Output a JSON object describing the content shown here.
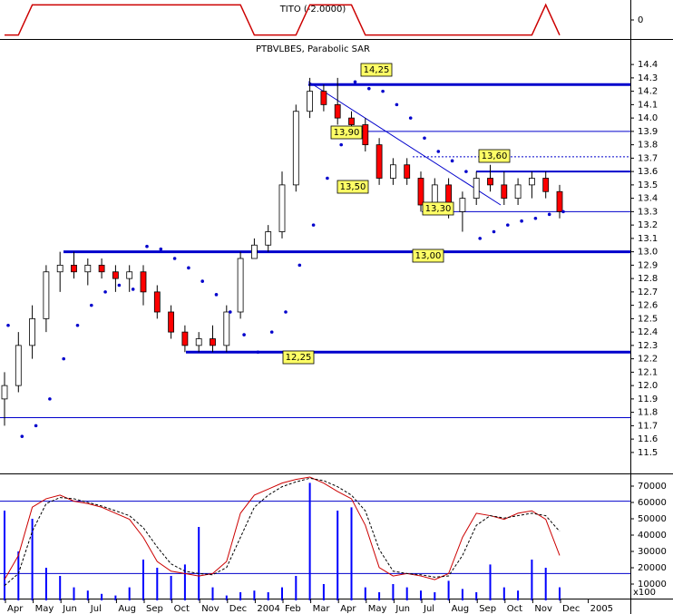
{
  "chart_data": [
    {
      "type": "line",
      "title": "TITO (-2.0000)",
      "color": "#cc0000",
      "values": [
        -1,
        -1,
        1,
        1,
        1,
        1,
        1,
        1,
        1,
        1,
        1,
        1,
        1,
        1,
        1,
        1,
        1,
        1,
        -1,
        -1,
        -1,
        -1,
        1,
        1,
        1,
        1,
        -1,
        -1,
        -1,
        -1,
        -1,
        -1,
        -1,
        -1,
        -1,
        -1,
        -1,
        -1,
        -1,
        1,
        -1,
        null,
        null,
        null
      ],
      "ylim": [
        -1.2,
        1.2
      ],
      "yticks": [
        0
      ]
    },
    {
      "type": "candlestick",
      "title": "PTBVLBES, Parabolic SAR",
      "up_color": "#ffffff",
      "down_color": "#ff0000",
      "sar_color": "#0000cc",
      "open": [
        11.9,
        12.0,
        12.3,
        12.5,
        12.85,
        12.9,
        12.85,
        12.9,
        12.85,
        12.8,
        12.85,
        12.7,
        12.55,
        12.4,
        12.3,
        12.35,
        12.3,
        12.55,
        12.95,
        13.05,
        13.15,
        13.5,
        14.05,
        14.2,
        14.1,
        14.0,
        13.95,
        13.8,
        13.55,
        13.65,
        13.55,
        13.35,
        13.5,
        13.3,
        13.4,
        13.55,
        13.5,
        13.4,
        13.5,
        13.55,
        13.45,
        null,
        null,
        null
      ],
      "high": [
        12.1,
        12.4,
        12.6,
        12.9,
        13.0,
        13.0,
        12.95,
        12.95,
        12.9,
        12.9,
        12.9,
        12.75,
        12.6,
        12.45,
        12.4,
        12.45,
        12.6,
        13.0,
        13.1,
        13.2,
        13.6,
        14.1,
        14.3,
        14.25,
        14.3,
        14.05,
        14.0,
        13.85,
        13.7,
        13.7,
        13.6,
        13.55,
        13.55,
        13.45,
        13.6,
        13.65,
        13.6,
        13.55,
        13.6,
        13.6,
        13.5,
        null,
        null,
        null
      ],
      "low": [
        11.7,
        11.95,
        12.2,
        12.4,
        12.7,
        12.8,
        12.75,
        12.8,
        12.7,
        12.7,
        12.6,
        12.5,
        12.35,
        12.25,
        12.25,
        12.25,
        12.25,
        12.5,
        12.95,
        13.0,
        13.1,
        13.45,
        14.0,
        14.05,
        13.95,
        13.9,
        13.75,
        13.5,
        13.5,
        13.5,
        13.3,
        13.3,
        13.25,
        13.15,
        13.35,
        13.45,
        13.35,
        13.35,
        13.4,
        13.4,
        13.25,
        null,
        null,
        null
      ],
      "close": [
        12.0,
        12.3,
        12.5,
        12.85,
        12.9,
        12.85,
        12.9,
        12.85,
        12.8,
        12.85,
        12.7,
        12.55,
        12.4,
        12.3,
        12.35,
        12.3,
        12.55,
        12.95,
        13.05,
        13.15,
        13.5,
        14.05,
        14.2,
        14.1,
        14.0,
        13.95,
        13.8,
        13.55,
        13.65,
        13.55,
        13.35,
        13.5,
        13.3,
        13.4,
        13.55,
        13.5,
        13.4,
        13.5,
        13.55,
        13.45,
        13.3,
        null,
        null,
        null
      ],
      "sar": [
        12.45,
        11.62,
        11.7,
        11.9,
        12.2,
        12.45,
        12.6,
        12.7,
        12.75,
        12.72,
        13.04,
        13.02,
        12.95,
        12.88,
        12.78,
        12.68,
        12.55,
        12.38,
        12.25,
        12.4,
        12.55,
        12.9,
        13.2,
        13.55,
        13.8,
        14.27,
        14.22,
        14.2,
        14.1,
        14.0,
        13.85,
        13.75,
        13.68,
        13.6,
        13.1,
        13.15,
        13.2,
        13.23,
        13.25,
        13.28,
        13.3,
        null,
        null,
        null
      ],
      "ylim": [
        11.35,
        14.55
      ],
      "yticks": [
        11.5,
        11.6,
        11.7,
        11.8,
        11.9,
        {
          "value": 12,
          "label": "12.0"
        },
        12.1,
        12.2,
        12.3,
        12.4,
        12.5,
        12.6,
        12.7,
        12.8,
        12.9,
        {
          "value": 13,
          "label": "13.0"
        },
        13.1,
        13.2,
        13.3,
        13.4,
        13.5,
        13.6,
        13.7,
        13.8,
        13.9,
        {
          "value": 14,
          "label": "14.0"
        },
        14.1,
        14.2,
        14.3,
        14.4
      ],
      "levels": [
        {
          "value": 14.25,
          "style": "thick"
        },
        {
          "value": 13.9,
          "style": "solid"
        },
        {
          "value": 13.71,
          "style": "dotted"
        },
        {
          "value": 13.6,
          "style": "medium"
        },
        {
          "value": 13.3,
          "style": "solid"
        },
        {
          "value": 13.0,
          "style": "thick"
        },
        {
          "value": 12.25,
          "style": "thick"
        },
        {
          "value": 11.76,
          "style": "solid"
        }
      ],
      "annotations": [
        {
          "value": 14.25,
          "label": "14,25"
        },
        {
          "value": 13.9,
          "label": "13,90"
        },
        {
          "value": 13.6,
          "label": "13,60"
        },
        {
          "value": 13.5,
          "label": "13,50"
        },
        {
          "value": 13.3,
          "label": "13,30"
        },
        {
          "value": 13.0,
          "label": "13,00"
        },
        {
          "value": 12.25,
          "label": "12,25"
        }
      ]
    },
    {
      "type": "bar",
      "color": "#0000ff",
      "categories": [
        "Apr",
        null,
        "May",
        null,
        "Jun",
        null,
        "Jul",
        null,
        "Aug",
        null,
        "Sep",
        null,
        "Oct",
        null,
        "Nov",
        null,
        "Dec",
        null,
        "2004",
        null,
        "Feb",
        null,
        "Mar",
        null,
        "Apr",
        null,
        "May",
        null,
        "Jun",
        null,
        "Jul",
        null,
        "Aug",
        null,
        "Sep",
        null,
        "Oct",
        null,
        "Nov",
        null,
        "Dec",
        null,
        "2005",
        null
      ],
      "values": [
        55000,
        30000,
        50000,
        20000,
        15000,
        8000,
        6000,
        4000,
        3000,
        8000,
        25000,
        20000,
        15000,
        22000,
        45000,
        8000,
        3000,
        5000,
        6000,
        5000,
        8000,
        15000,
        72000,
        10000,
        55000,
        57000,
        8000,
        5000,
        10000,
        8000,
        6000,
        5000,
        12000,
        7000,
        5000,
        22000,
        8000,
        6000,
        25000,
        20000,
        8000,
        null,
        null,
        null
      ],
      "ylim": [
        0,
        75000
      ],
      "yticks": [
        10000,
        20000,
        30000,
        40000,
        50000,
        60000,
        70000
      ],
      "unit_label": "x100",
      "y2lim": [
        0,
        100
      ],
      "levels": [
        20,
        80
      ],
      "series": [
        {
          "color": "#cc0000",
          "style": "solid",
          "axis": "y2",
          "values": [
            15,
            35,
            75,
            82,
            85,
            80,
            78,
            75,
            70,
            65,
            50,
            30,
            22,
            20,
            18,
            20,
            30,
            70,
            85,
            90,
            95,
            98,
            100,
            95,
            88,
            82,
            60,
            25,
            18,
            20,
            18,
            15,
            20,
            50,
            70,
            68,
            65,
            70,
            72,
            65,
            35,
            null,
            null,
            null
          ]
        },
        {
          "color": "#000000",
          "style": "dashed",
          "axis": "y2",
          "values": [
            10,
            20,
            55,
            78,
            83,
            82,
            79,
            76,
            72,
            68,
            58,
            42,
            28,
            22,
            20,
            19,
            25,
            50,
            75,
            85,
            92,
            96,
            99,
            97,
            92,
            85,
            72,
            40,
            22,
            20,
            19,
            17,
            18,
            35,
            60,
            68,
            66,
            68,
            70,
            68,
            55,
            null,
            null,
            null
          ]
        }
      ]
    }
  ]
}
